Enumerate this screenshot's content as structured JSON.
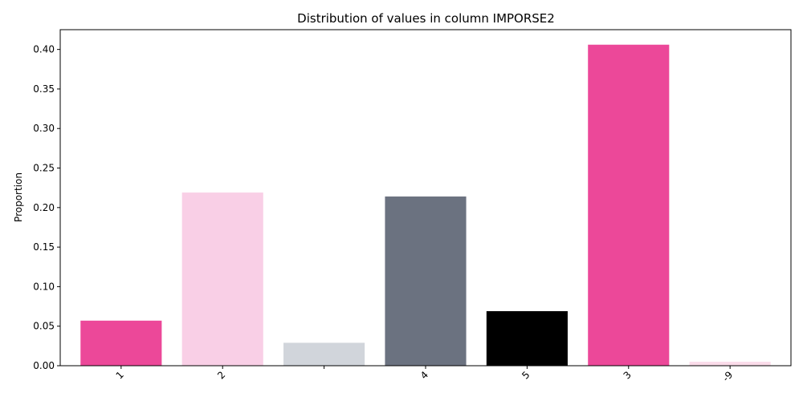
{
  "chart_data": {
    "type": "bar",
    "title": "Distribution of values in column IMPORSE2",
    "xlabel": "",
    "ylabel": "Proportion",
    "categories": [
      "1",
      "2",
      "",
      "4",
      "5",
      "3",
      "-9"
    ],
    "values": [
      0.057,
      0.219,
      0.029,
      0.214,
      0.069,
      0.406,
      0.005
    ],
    "colors": [
      "#ec4899",
      "#f9cfe6",
      "#d1d5db",
      "#6b7280",
      "#000000",
      "#ec4899",
      "#fbdcea"
    ],
    "ylim": [
      0,
      0.425
    ],
    "yticks": [
      0.0,
      0.05,
      0.1,
      0.15,
      0.2,
      0.25,
      0.3,
      0.35,
      0.4
    ],
    "ytick_labels": [
      "0.00",
      "0.05",
      "0.10",
      "0.15",
      "0.20",
      "0.25",
      "0.30",
      "0.35",
      "0.40"
    ],
    "grid": false,
    "legend": "none"
  }
}
